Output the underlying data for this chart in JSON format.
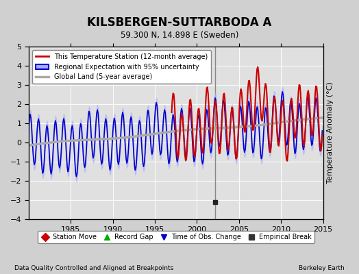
{
  "title": "KILSBERGEN-SUTTARBODA A",
  "subtitle": "59.300 N, 14.898 E (Sweden)",
  "ylabel": "Temperature Anomaly (°C)",
  "xlim": [
    1980,
    2015
  ],
  "ylim": [
    -4,
    5
  ],
  "yticks": [
    -4,
    -3,
    -2,
    -1,
    0,
    1,
    2,
    3,
    4,
    5
  ],
  "xticks": [
    1985,
    1990,
    1995,
    2000,
    2005,
    2010,
    2015
  ],
  "bg_color": "#d0d0d0",
  "plot_bg_color": "#e0e0e0",
  "grid_color": "#ffffff",
  "legend_labels": [
    "This Temperature Station (12-month average)",
    "Regional Expectation with 95% uncertainty",
    "Global Land (5-year average)"
  ],
  "red_line_color": "#cc0000",
  "blue_line_color": "#0000cc",
  "blue_fill_color": "#aaaaff",
  "gray_line_color": "#aaaaaa",
  "vline_x": 2002.2,
  "marker_x": 2002.2,
  "marker_y": -3.1,
  "red_start_year": 1997,
  "footer_left": "Data Quality Controlled and Aligned at Breakpoints",
  "footer_right": "Berkeley Earth",
  "bottom_legend": [
    {
      "marker": "D",
      "color": "#cc0000",
      "label": "Station Move"
    },
    {
      "marker": "^",
      "color": "#00aa00",
      "label": "Record Gap"
    },
    {
      "marker": "v",
      "color": "#0000cc",
      "label": "Time of Obs. Change"
    },
    {
      "marker": "s",
      "color": "#333333",
      "label": "Empirical Break"
    }
  ]
}
